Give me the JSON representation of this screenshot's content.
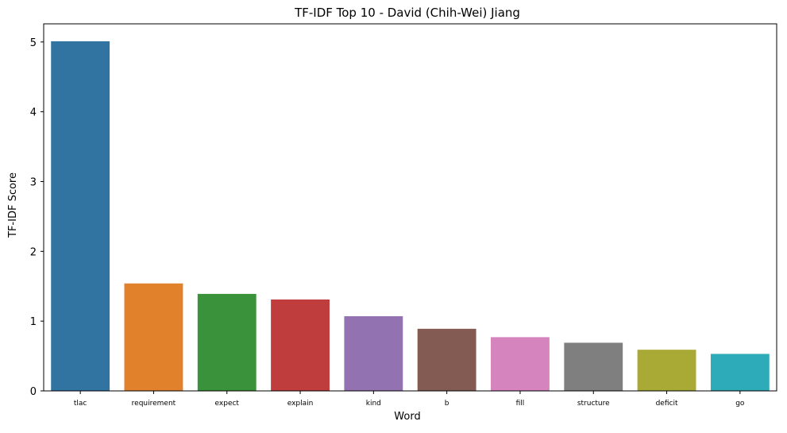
{
  "chart_data": {
    "type": "bar",
    "title": "TF-IDF Top 10 - David (Chih-Wei) Jiang",
    "xlabel": "Word",
    "ylabel": "TF-IDF Score",
    "categories": [
      "tlac",
      "requirement",
      "expect",
      "explain",
      "kind",
      "b",
      "fill",
      "structure",
      "deficit",
      "go"
    ],
    "values": [
      5.01,
      1.54,
      1.39,
      1.31,
      1.07,
      0.89,
      0.77,
      0.69,
      0.59,
      0.53
    ],
    "colors": [
      "#3274a1",
      "#e1812c",
      "#3a923a",
      "#c03d3e",
      "#9372b2",
      "#845b53",
      "#d684bd",
      "#7f7f7f",
      "#a9aa35",
      "#2eabb8"
    ],
    "yticks": [
      0,
      1,
      2,
      3,
      4,
      5
    ],
    "ylim": [
      0,
      5.26
    ],
    "grid": false,
    "legend": "none"
  }
}
